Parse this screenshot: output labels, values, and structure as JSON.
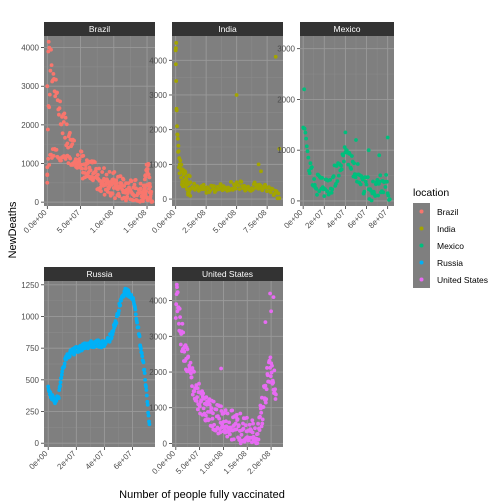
{
  "chart_data": {
    "type": "scatter",
    "xlabel": "Number of people fully vaccinated",
    "ylabel": "NewDeaths",
    "legend": {
      "title": "location",
      "position": "right",
      "entries": [
        {
          "name": "Brazil",
          "color": "#F8766D"
        },
        {
          "name": "India",
          "color": "#A3A500"
        },
        {
          "name": "Mexico",
          "color": "#00BF7D"
        },
        {
          "name": "Russia",
          "color": "#00B0F6"
        },
        {
          "name": "United States",
          "color": "#E76BF3"
        }
      ]
    },
    "panel_background": "#7f7f7f",
    "grid": true,
    "facets": [
      {
        "name": "Brazil",
        "color": "#F8766D",
        "xlim": [
          -5000000,
          162000000
        ],
        "ylim": [
          -100,
          4300
        ],
        "xticks": [
          0,
          50000000,
          100000000,
          150000000
        ],
        "xtick_labels": [
          "0.0e+00",
          "5.0e+07",
          "1.0e+08",
          "1.5e+08"
        ],
        "yticks": [
          0,
          1000,
          2000,
          3000,
          4000
        ],
        "ytick_labels": [
          "0",
          "1000",
          "2000",
          "3000",
          "4000"
        ],
        "curves": [
          {
            "x": [
              0,
              1000000,
              3000000,
              5000000,
              8000000,
              12000000,
              16000000,
              20000000,
              25000000,
              30000000,
              40000000,
              50000000,
              60000000,
              70000000,
              80000000,
              90000000,
              100000000,
              110000000,
              120000000,
              130000000,
              140000000,
              145000000,
              150000000,
              155000000
            ],
            "y": [
              900,
              2000,
              2800,
              3700,
              3300,
              2900,
              2600,
              2300,
              2000,
              1700,
              1300,
              1000,
              850,
              700,
              600,
              500,
              450,
              350,
              300,
              250,
              200,
              150,
              120,
              100
            ],
            "n": 170,
            "spread": 350
          },
          {
            "x": [
              0,
              10000000,
              20000000,
              30000000,
              40000000,
              50000000,
              60000000,
              70000000,
              80000000,
              90000000,
              100000000,
              110000000,
              120000000,
              130000000,
              140000000,
              150000000
            ],
            "y": [
              1000,
              1300,
              1200,
              1100,
              1000,
              900,
              800,
              700,
              600,
              500,
              450,
              400,
              350,
              300,
              250,
              200
            ],
            "n": 110,
            "spread": 140
          },
          {
            "x": [
              145000000,
              148000000,
              150000000,
              152000000,
              154000000,
              156000000,
              158000000
            ],
            "y": [
              300,
              600,
              1000,
              800,
              400,
              200,
              100
            ],
            "n": 25,
            "spread": 200
          }
        ],
        "extra_points": [
          [
            2000000,
            4150
          ],
          [
            3000000,
            4000
          ],
          [
            1500000,
            3900
          ],
          [
            0,
            3000
          ],
          [
            0,
            500
          ],
          [
            0,
            700
          ]
        ]
      },
      {
        "name": "India",
        "color": "#A3A500",
        "xlim": [
          -30000000,
          880000000
        ],
        "ylim": [
          -200,
          4700
        ],
        "xticks": [
          0,
          250000000,
          500000000,
          750000000
        ],
        "xtick_labels": [
          "0.0e+00",
          "2.5e+08",
          "5.0e+08",
          "7.5e+08"
        ],
        "yticks": [
          0,
          1000,
          2000,
          3000,
          4000
        ],
        "ytick_labels": [
          "0",
          "1000",
          "2000",
          "3000",
          "4000"
        ],
        "curves": [
          {
            "x": [
              0,
              2000000,
              5000000,
              10000000,
              20000000,
              30000000,
              50000000,
              80000000,
              120000000
            ],
            "y": [
              4400,
              3800,
              3000,
              2200,
              1500,
              1000,
              700,
              500,
              350
            ],
            "n": 55,
            "spread": 300
          },
          {
            "x": [
              120000000,
              200000000,
              300000000,
              400000000,
              500000000,
              600000000,
              700000000,
              750000000,
              800000000,
              850000000
            ],
            "y": [
              400,
              300,
              300,
              350,
              400,
              350,
              400,
              300,
              150,
              50
            ],
            "n": 95,
            "spread": 130
          }
        ],
        "extra_points": [
          [
            5000000,
            4500
          ],
          [
            2000000,
            4350
          ],
          [
            820000000,
            4100
          ],
          [
            500000000,
            3000
          ],
          [
            850000000,
            1450
          ],
          [
            680000000,
            1000
          ],
          [
            700000000,
            800
          ]
        ]
      },
      {
        "name": "Mexico",
        "color": "#00BF7D",
        "xlim": [
          -3000000,
          86000000
        ],
        "ylim": [
          -100,
          3250
        ],
        "xticks": [
          0,
          20000000,
          40000000,
          60000000,
          80000000
        ],
        "xtick_labels": [
          "0e+00",
          "2e+07",
          "4e+07",
          "6e+07",
          "8e+07"
        ],
        "yticks": [
          0,
          1000,
          2000,
          3000
        ],
        "ytick_labels": [
          "0",
          "1000",
          "2000",
          "3000"
        ],
        "curves": [
          {
            "x": [
              0,
              1000000,
              2000000,
              4000000,
              7000000,
              10000000,
              15000000,
              20000000,
              25000000,
              30000000,
              35000000,
              40000000,
              45000000,
              50000000,
              55000000,
              60000000,
              65000000,
              70000000,
              75000000,
              80000000,
              82000000
            ],
            "y": [
              1500,
              1700,
              1400,
              900,
              600,
              400,
              300,
              250,
              300,
              500,
              700,
              900,
              800,
              600,
              400,
              300,
              200,
              250,
              400,
              300,
              200
            ],
            "n": 120,
            "spread": 220
          }
        ],
        "extra_points": [
          [
            1000000,
            2200
          ],
          [
            40000000,
            1350
          ],
          [
            50000000,
            1200
          ],
          [
            80000000,
            1250
          ],
          [
            62000000,
            1000
          ],
          [
            72000000,
            900
          ]
        ]
      },
      {
        "name": "Russia",
        "color": "#00B0F6",
        "xlim": [
          -3000000,
          76000000
        ],
        "ylim": [
          -30,
          1280
        ],
        "xticks": [
          0,
          20000000,
          40000000,
          60000000
        ],
        "xtick_labels": [
          "0e+00",
          "2e+07",
          "4e+07",
          "6e+07"
        ],
        "yticks": [
          0,
          250,
          500,
          750,
          1000,
          1250
        ],
        "ytick_labels": [
          "0",
          "250",
          "500",
          "750",
          "1000",
          "1250"
        ],
        "curves": [
          {
            "x": [
              0,
              1000000,
              3000000,
              5000000,
              7000000,
              8000000,
              9000000,
              10000000,
              12000000,
              15000000,
              20000000,
              25000000,
              30000000,
              35000000,
              38000000,
              40000000,
              42000000,
              45000000,
              48000000,
              50000000,
              52000000,
              55000000,
              58000000,
              60000000,
              62000000,
              64000000,
              66000000,
              68000000,
              70000000,
              71000000,
              72000000
            ],
            "y": [
              450,
              400,
              360,
              330,
              350,
              400,
              500,
              580,
              650,
              700,
              740,
              760,
              780,
              790,
              780,
              780,
              800,
              850,
              950,
              1050,
              1150,
              1200,
              1180,
              1150,
              1050,
              900,
              750,
              600,
              400,
              250,
              130
            ],
            "n": 240,
            "spread": 28
          }
        ],
        "extra_points": []
      },
      {
        "name": "United States",
        "color": "#E76BF3",
        "xlim": [
          -8000000,
          225000000
        ],
        "ylim": [
          -100,
          4550
        ],
        "xticks": [
          0,
          50000000,
          100000000,
          150000000,
          200000000
        ],
        "xtick_labels": [
          "0.0e+00",
          "5.0e+07",
          "1.0e+08",
          "1.5e+08",
          "2.0e+08"
        ],
        "yticks": [
          0,
          1000,
          2000,
          3000,
          4000
        ],
        "ytick_labels": [
          "0",
          "1000",
          "2000",
          "3000",
          "4000"
        ],
        "curves": [
          {
            "x": [
              0,
              2000000,
              5000000,
              10000000,
              20000000,
              30000000,
              40000000,
              55000000,
              70000000,
              85000000,
              100000000,
              120000000,
              140000000,
              150000000,
              160000000,
              165000000,
              170000000,
              175000000,
              180000000,
              185000000,
              190000000,
              195000000,
              200000000,
              205000000,
              210000000
            ],
            "y": [
              3500,
              4300,
              3800,
              3200,
              2500,
              2000,
              1500,
              1100,
              900,
              700,
              600,
              500,
              400,
              300,
              250,
              200,
              300,
              500,
              800,
              1200,
              1600,
              2000,
              2200,
              1800,
              1500
            ],
            "n": 260,
            "spread": 420
          }
        ],
        "extra_points": [
          [
            2000000,
            4450
          ],
          [
            95000000,
            2100
          ],
          [
            198000000,
            4200
          ],
          [
            205000000,
            4100
          ],
          [
            188000000,
            3400
          ],
          [
            200000000,
            3700
          ]
        ]
      }
    ]
  }
}
